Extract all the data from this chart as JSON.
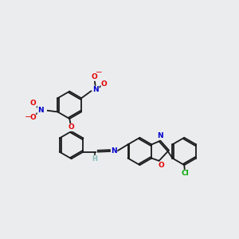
{
  "background_color": "#eaecee",
  "bond_color": "#1a1a1a",
  "atom_colors": {
    "O": "#e60000",
    "N": "#0000cc",
    "Cl": "#00aa00",
    "H": "#88bbbb",
    "C": "#1a1a1a"
  },
  "figsize": [
    3.0,
    3.0
  ],
  "dpi": 100,
  "lw": 1.3,
  "r_large": 0.52,
  "r_small": 0.46,
  "font_size": 6.5
}
